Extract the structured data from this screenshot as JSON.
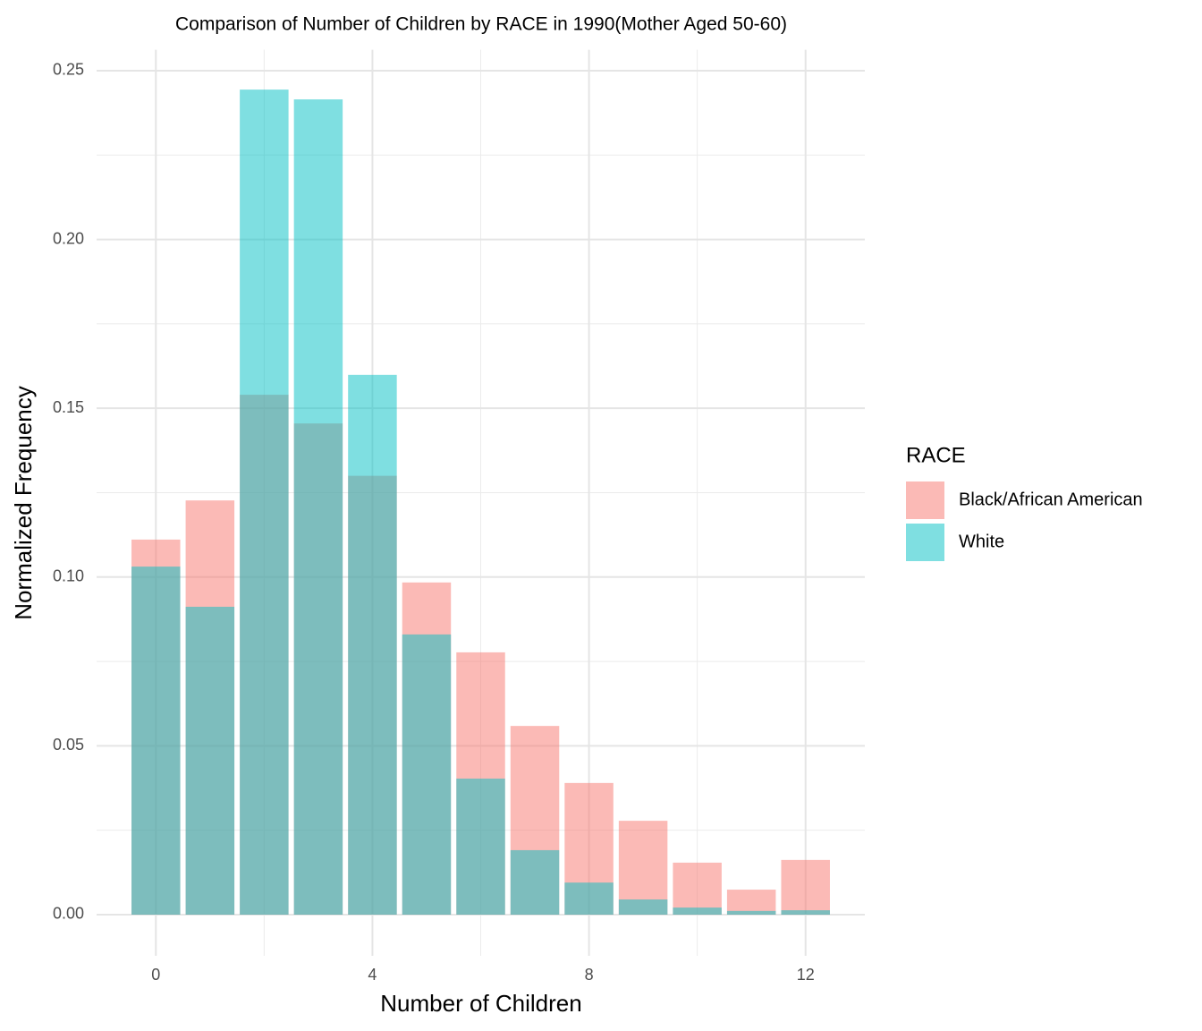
{
  "chart_data": {
    "type": "bar",
    "title": "Comparison of Number of Children by RACE in 1990(Mother Aged 50-60)",
    "x_label": "Number of Children",
    "y_label": "Normalized Frequency",
    "legend_title": "RACE",
    "legend_position": "right",
    "x": [
      0,
      1,
      2,
      3,
      4,
      5,
      6,
      7,
      8,
      9,
      10,
      11,
      12
    ],
    "bar_width": 0.9,
    "opacity": 0.5,
    "series": [
      {
        "name": "Black/African American",
        "color": "#F8766D",
        "values": [
          0.1111,
          0.1227,
          0.154,
          0.1455,
          0.13,
          0.0984,
          0.0777,
          0.0559,
          0.039,
          0.0278,
          0.0154,
          0.0074,
          0.0162
        ]
      },
      {
        "name": "White",
        "color": "#00BFC4",
        "values": [
          0.1031,
          0.0912,
          0.2444,
          0.2415,
          0.1599,
          0.083,
          0.0403,
          0.0191,
          0.0095,
          0.0045,
          0.0021,
          0.0011,
          0.0013
        ]
      }
    ],
    "xlim": [
      -1.095,
      13.095
    ],
    "ylim": [
      -0.0122,
      0.2562
    ],
    "xticks": [
      0,
      4,
      8,
      12
    ],
    "yticks": [
      {
        "value": 0,
        "label": "0.00"
      },
      0.05,
      {
        "value": 0.1,
        "label": "0.10"
      },
      0.15,
      {
        "value": 0.2,
        "label": "0.20"
      },
      0.25
    ],
    "x_minor_ticks": [
      2,
      6,
      10
    ],
    "y_minor_ticks": [
      0.025,
      0.075,
      0.125,
      0.175,
      0.225
    ],
    "grid": true
  }
}
